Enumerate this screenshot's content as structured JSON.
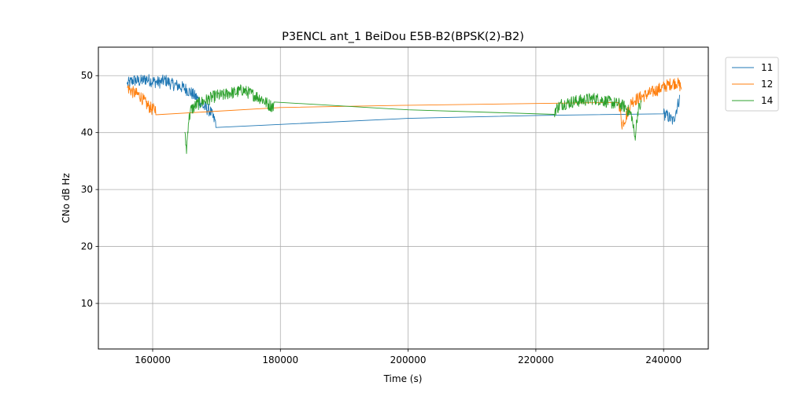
{
  "chart_data": {
    "type": "line",
    "title": "P3ENCL ant_1 BeiDou E5B-B2(BPSK(2)-B2)",
    "xlabel": "Time (s)",
    "ylabel": "CNo dB Hz",
    "xlim": [
      151500,
      247000
    ],
    "ylim": [
      2,
      55
    ],
    "xticks": [
      160000,
      180000,
      200000,
      220000,
      240000
    ],
    "xtick_labels": [
      "160000",
      "180000",
      "200000",
      "220000",
      "240000"
    ],
    "yticks": [
      10,
      20,
      30,
      40,
      50
    ],
    "ytick_labels": [
      "10",
      "20",
      "30",
      "40",
      "50"
    ],
    "grid": true,
    "legend_position": "outside-top-right",
    "series": [
      {
        "name": "11",
        "color": "#1f77b4",
        "points": [
          [
            156000,
            48.5
          ],
          [
            157000,
            49.2
          ],
          [
            158000,
            49.0
          ],
          [
            159000,
            49.4
          ],
          [
            160000,
            49.0
          ],
          [
            161000,
            48.8
          ],
          [
            162000,
            49.2
          ],
          [
            163000,
            48.5
          ],
          [
            164000,
            48.2
          ],
          [
            165000,
            47.8
          ],
          [
            166000,
            47.0
          ],
          [
            167000,
            46.0
          ],
          [
            168000,
            44.5
          ],
          [
            169000,
            43.8
          ],
          [
            169500,
            42.5
          ],
          [
            169900,
            41.8
          ],
          [
            200000,
            42.5
          ],
          [
            220000,
            43.0
          ],
          [
            240000,
            43.3
          ],
          [
            240500,
            43.0
          ],
          [
            241000,
            42.5
          ],
          [
            241500,
            42.0
          ],
          [
            242000,
            44.0
          ],
          [
            242500,
            46.0
          ]
        ]
      },
      {
        "name": "12",
        "color": "#ff7f0e",
        "points": [
          [
            156000,
            48.0
          ],
          [
            157000,
            47.0
          ],
          [
            158000,
            46.5
          ],
          [
            159000,
            45.0
          ],
          [
            160000,
            44.0
          ],
          [
            160500,
            44.1
          ],
          [
            180000,
            44.4
          ],
          [
            200000,
            44.8
          ],
          [
            220000,
            45.1
          ],
          [
            233000,
            45.3
          ],
          [
            233500,
            41.5
          ],
          [
            234000,
            42.5
          ],
          [
            235000,
            45.5
          ],
          [
            236000,
            46.0
          ],
          [
            237000,
            46.5
          ],
          [
            238000,
            47.0
          ],
          [
            239000,
            47.5
          ],
          [
            240000,
            48.0
          ],
          [
            241000,
            48.5
          ],
          [
            242000,
            48.8
          ],
          [
            242800,
            48.0
          ]
        ]
      },
      {
        "name": "14",
        "color": "#2ca02c",
        "points": [
          [
            165000,
            40.0
          ],
          [
            165300,
            37.0
          ],
          [
            165600,
            42.0
          ],
          [
            166000,
            44.0
          ],
          [
            167000,
            45.0
          ],
          [
            168000,
            45.5
          ],
          [
            169000,
            46.0
          ],
          [
            170000,
            46.5
          ],
          [
            171000,
            46.5
          ],
          [
            172000,
            47.0
          ],
          [
            173000,
            47.0
          ],
          [
            174000,
            47.5
          ],
          [
            175000,
            47.0
          ],
          [
            176000,
            46.5
          ],
          [
            177000,
            46.0
          ],
          [
            178000,
            45.0
          ],
          [
            179000,
            44.5
          ],
          [
            200000,
            44.0
          ],
          [
            222900,
            43.2
          ],
          [
            223000,
            44.0
          ],
          [
            224000,
            45.0
          ],
          [
            225000,
            45.2
          ],
          [
            226000,
            45.5
          ],
          [
            227000,
            45.6
          ],
          [
            228000,
            45.8
          ],
          [
            229000,
            46.0
          ],
          [
            230000,
            45.8
          ],
          [
            231000,
            45.5
          ],
          [
            232000,
            45.2
          ],
          [
            233000,
            45.0
          ],
          [
            234000,
            44.5
          ],
          [
            235000,
            43.0
          ],
          [
            235500,
            39.0
          ],
          [
            236000,
            44.0
          ],
          [
            236500,
            45.0
          ]
        ]
      }
    ]
  }
}
